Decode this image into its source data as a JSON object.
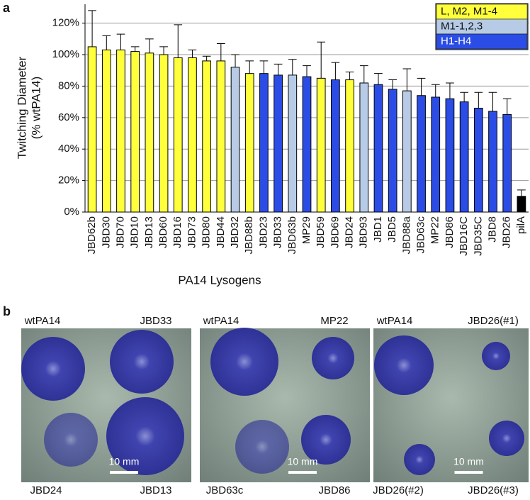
{
  "chart_data": {
    "type": "bar",
    "panel": "a",
    "ylabel": [
      "Twitching Diameter",
      "(% wtPA14)"
    ],
    "xlabel": "PA14  Lysogens",
    "categories": [
      "JBD62b",
      "JBD30",
      "JBD70",
      "JBD10",
      "JBD13",
      "JBD60",
      "JBD16",
      "JBD73",
      "JBD80",
      "JBD44",
      "JBD32",
      "JBD88b",
      "JBD23",
      "JBD33",
      "JBD63b",
      "MP29",
      "JBD59",
      "JBD69",
      "JBD24",
      "JBD93",
      "JBD1",
      "JBD5",
      "JBD88a",
      "JBD63c",
      "MP22",
      "JBD86",
      "JBD16C",
      "JBD35C",
      "JBD8",
      "JBD26",
      "pilA"
    ],
    "values": [
      105,
      103,
      103,
      102,
      101,
      100,
      98,
      98,
      96,
      96,
      92,
      88,
      88,
      87,
      87,
      86,
      85,
      84,
      84,
      82,
      81,
      78,
      77,
      74,
      73,
      72,
      70,
      66,
      64,
      62,
      10
    ],
    "errors": [
      23,
      9,
      10,
      3,
      9,
      5,
      21,
      5,
      3,
      11,
      8,
      8,
      8,
      7,
      10,
      7,
      23,
      11,
      5,
      11,
      7,
      6,
      14,
      11,
      8,
      10,
      6,
      10,
      12,
      10,
      4
    ],
    "colors": [
      "#ffff3c",
      "#ffff3c",
      "#ffff3c",
      "#ffff3c",
      "#ffff3c",
      "#ffff3c",
      "#ffff3c",
      "#ffff3c",
      "#ffff3c",
      "#ffff3c",
      "#b7cbe6",
      "#ffff3c",
      "#2b4de6",
      "#2b4de6",
      "#b7cbe6",
      "#2b4de6",
      "#ffff3c",
      "#2b4de6",
      "#ffff3c",
      "#b7cbe6",
      "#2b4de6",
      "#2b4de6",
      "#b7cbe6",
      "#2b4de6",
      "#2b4de6",
      "#2b4de6",
      "#2b4de6",
      "#2b4de6",
      "#2b4de6",
      "#2b4de6",
      "#000000"
    ],
    "legend": [
      {
        "name": "L, M2, M1-4",
        "color": "#ffff3c"
      },
      {
        "name": "M1-1,2,3",
        "color": "#b7cbe6"
      },
      {
        "name": "H1-H4",
        "color": "#2b4de6"
      }
    ],
    "legend_position": "top-right",
    "ylim": [
      0,
      132
    ],
    "yticks": [
      {
        "value": 0,
        "label": "0%"
      },
      {
        "value": 20,
        "label": "20%"
      },
      {
        "value": 40,
        "label": "40%"
      },
      {
        "value": 60,
        "label": "60%"
      },
      {
        "value": 80,
        "label": "80%"
      },
      {
        "value": 100,
        "label": "100%"
      },
      {
        "value": 120,
        "label": "120%"
      }
    ],
    "grid": true
  },
  "panel_b": {
    "label": "b",
    "photos": [
      {
        "top": [
          "wtPA14",
          "JBD33"
        ],
        "bottom": [
          "JBD24",
          "JBD13"
        ],
        "scale": "10 mm"
      },
      {
        "top": [
          "wtPA14",
          "MP22"
        ],
        "bottom": [
          "JBD63c",
          "JBD86"
        ],
        "scale": "10 mm"
      },
      {
        "top": [
          "wtPA14",
          "JBD26(#1)"
        ],
        "bottom": [
          "JBD26(#2)",
          "JBD26(#3)"
        ],
        "scale": "10 mm"
      }
    ]
  }
}
